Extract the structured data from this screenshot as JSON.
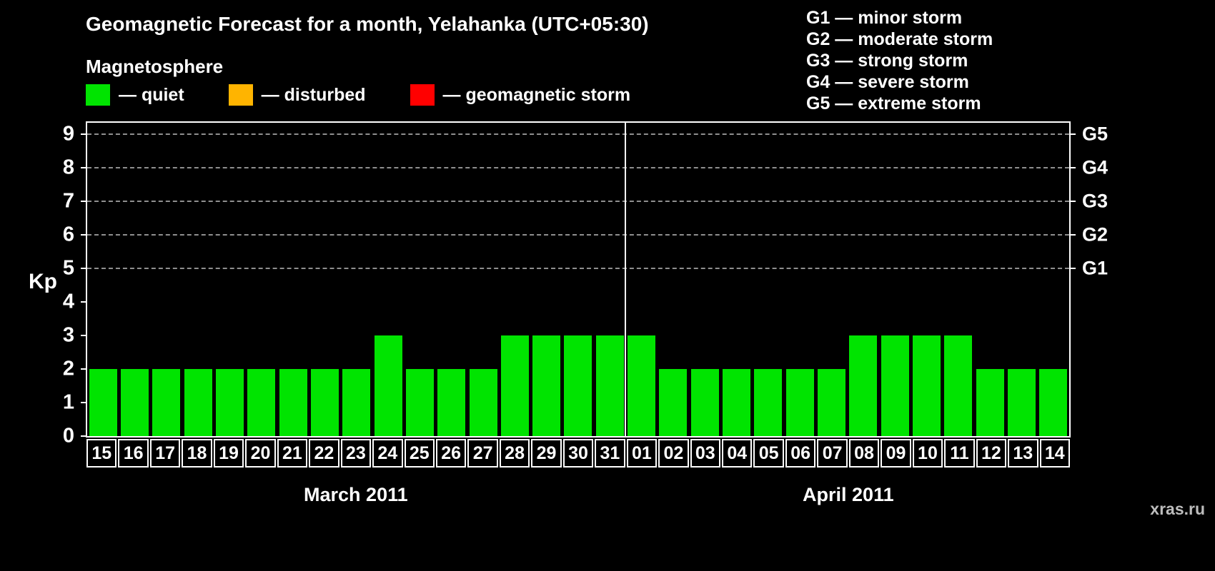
{
  "title": "Geomagnetic Forecast for a month, Yelahanka (UTC+05:30)",
  "magnetosphere": {
    "heading": "Magnetosphere",
    "items": [
      {
        "label": "— quiet",
        "color": "#00e400"
      },
      {
        "label": "— disturbed",
        "color": "#ffb400"
      },
      {
        "label": "— geomagnetic storm",
        "color": "#ff0000"
      }
    ]
  },
  "storm_scale": {
    "items": [
      "G1 — minor storm",
      "G2 — moderate storm",
      "G3 — strong storm",
      "G4 — severe storm",
      "G5 — extreme storm"
    ]
  },
  "watermark": "xras.ru",
  "chart_data": {
    "type": "bar",
    "title": "Geomagnetic Forecast for a month, Yelahanka (UTC+05:30)",
    "ylabel": "Kp",
    "ylim": [
      0,
      9.35
    ],
    "yticks": [
      0,
      1,
      2,
      3,
      4,
      5,
      6,
      7,
      8,
      9
    ],
    "grid": "dashed horizontal lines at G-levels only",
    "right_axis": [
      {
        "label": "G1",
        "value": 5
      },
      {
        "label": "G2",
        "value": 6
      },
      {
        "label": "G3",
        "value": 7
      },
      {
        "label": "G4",
        "value": 8
      },
      {
        "label": "G5",
        "value": 9
      }
    ],
    "level_thresholds": {
      "quiet_max": 3,
      "disturbed_max": 4
    },
    "months": [
      {
        "label": "March 2011",
        "categories": [
          "15",
          "16",
          "17",
          "18",
          "19",
          "20",
          "21",
          "22",
          "23",
          "24",
          "25",
          "26",
          "27",
          "28",
          "29",
          "30",
          "31"
        ],
        "values": [
          2,
          2,
          2,
          2,
          2,
          2,
          2,
          2,
          2,
          3,
          2,
          2,
          2,
          3,
          3,
          3,
          3
        ]
      },
      {
        "label": "April 2011",
        "categories": [
          "01",
          "02",
          "03",
          "04",
          "05",
          "06",
          "07",
          "08",
          "09",
          "10",
          "11",
          "12",
          "13",
          "14"
        ],
        "values": [
          3,
          2,
          2,
          2,
          2,
          2,
          2,
          3,
          3,
          3,
          3,
          2,
          2,
          2
        ]
      }
    ]
  }
}
